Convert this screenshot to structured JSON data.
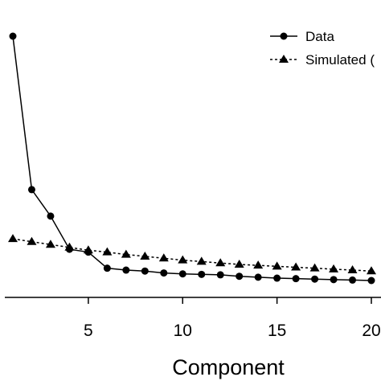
{
  "chart_data": {
    "type": "line",
    "xlabel": "Component",
    "ylabel": "",
    "xlim": [
      0.5,
      20.1
    ],
    "ylim": [
      0.75,
      3.7
    ],
    "xticks": [
      5,
      10,
      15,
      20
    ],
    "xtick_labels": [
      "5",
      "10",
      "15",
      "20"
    ],
    "grid": false,
    "legend_position": "top-right",
    "x": [
      1,
      2,
      3,
      4,
      5,
      6,
      7,
      8,
      9,
      10,
      11,
      12,
      13,
      14,
      15,
      16,
      17,
      18,
      19,
      20
    ],
    "series": [
      {
        "name": "Data",
        "marker": "circle",
        "line_style": "solid",
        "values": [
          3.45,
          1.83,
          1.55,
          1.2,
          1.17,
          1.0,
          0.98,
          0.97,
          0.95,
          0.94,
          0.935,
          0.93,
          0.915,
          0.905,
          0.895,
          0.89,
          0.885,
          0.88,
          0.875,
          0.87
        ]
      },
      {
        "name": "Simulated (",
        "marker": "triangle",
        "line_style": "dashed",
        "values": [
          1.31,
          1.28,
          1.25,
          1.22,
          1.19,
          1.17,
          1.145,
          1.125,
          1.105,
          1.085,
          1.07,
          1.055,
          1.04,
          1.03,
          1.02,
          1.01,
          1.0,
          0.99,
          0.98,
          0.97
        ]
      }
    ],
    "colors": {
      "line": "#000000",
      "background": "#ffffff"
    }
  }
}
